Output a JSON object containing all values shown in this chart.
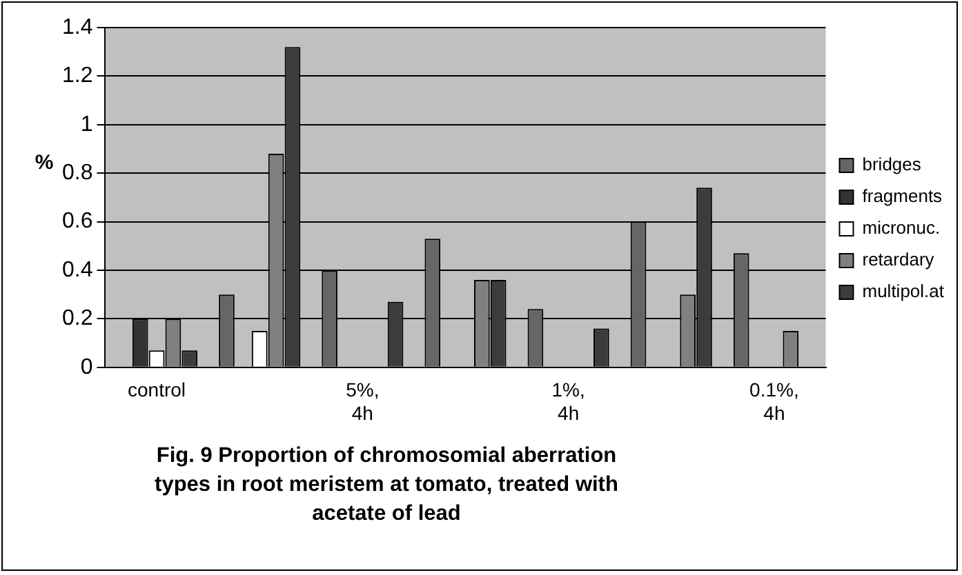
{
  "chart_data": {
    "type": "bar",
    "title": "Fig. 9 Proportion of chromosomial aberration types in root meristem at tomato, treated with acetate of lead",
    "ylabel": "%",
    "categories": [
      "control",
      null,
      "5%, 4h",
      null,
      "1%, 4h",
      null,
      "0.1%, 4h"
    ],
    "series": [
      {
        "name": "bridges",
        "color": "#666666",
        "values": [
          0,
          0.3,
          0.4,
          0.53,
          0.24,
          0.6,
          0.47
        ]
      },
      {
        "name": "fragments",
        "color": "#333333",
        "values": [
          0.2,
          0,
          0,
          0,
          0,
          0,
          0
        ]
      },
      {
        "name": "micronuc.",
        "color": "#ffffff",
        "values": [
          0.07,
          0.15,
          0,
          0,
          0,
          0,
          0
        ]
      },
      {
        "name": "retardary",
        "color": "#808080",
        "values": [
          0.2,
          0.88,
          0,
          0.36,
          0,
          0.3,
          0.15
        ]
      },
      {
        "name": "multipol.at",
        "color": "#3c3c3c",
        "values": [
          0.07,
          1.32,
          0.27,
          0.36,
          0.16,
          0.74,
          0
        ]
      }
    ],
    "ylim": [
      0,
      1.4
    ],
    "yticks": [
      0,
      0.2,
      0.4,
      0.6,
      0.8,
      1,
      1.2,
      1.4
    ],
    "grid": "y",
    "legend": "right"
  }
}
